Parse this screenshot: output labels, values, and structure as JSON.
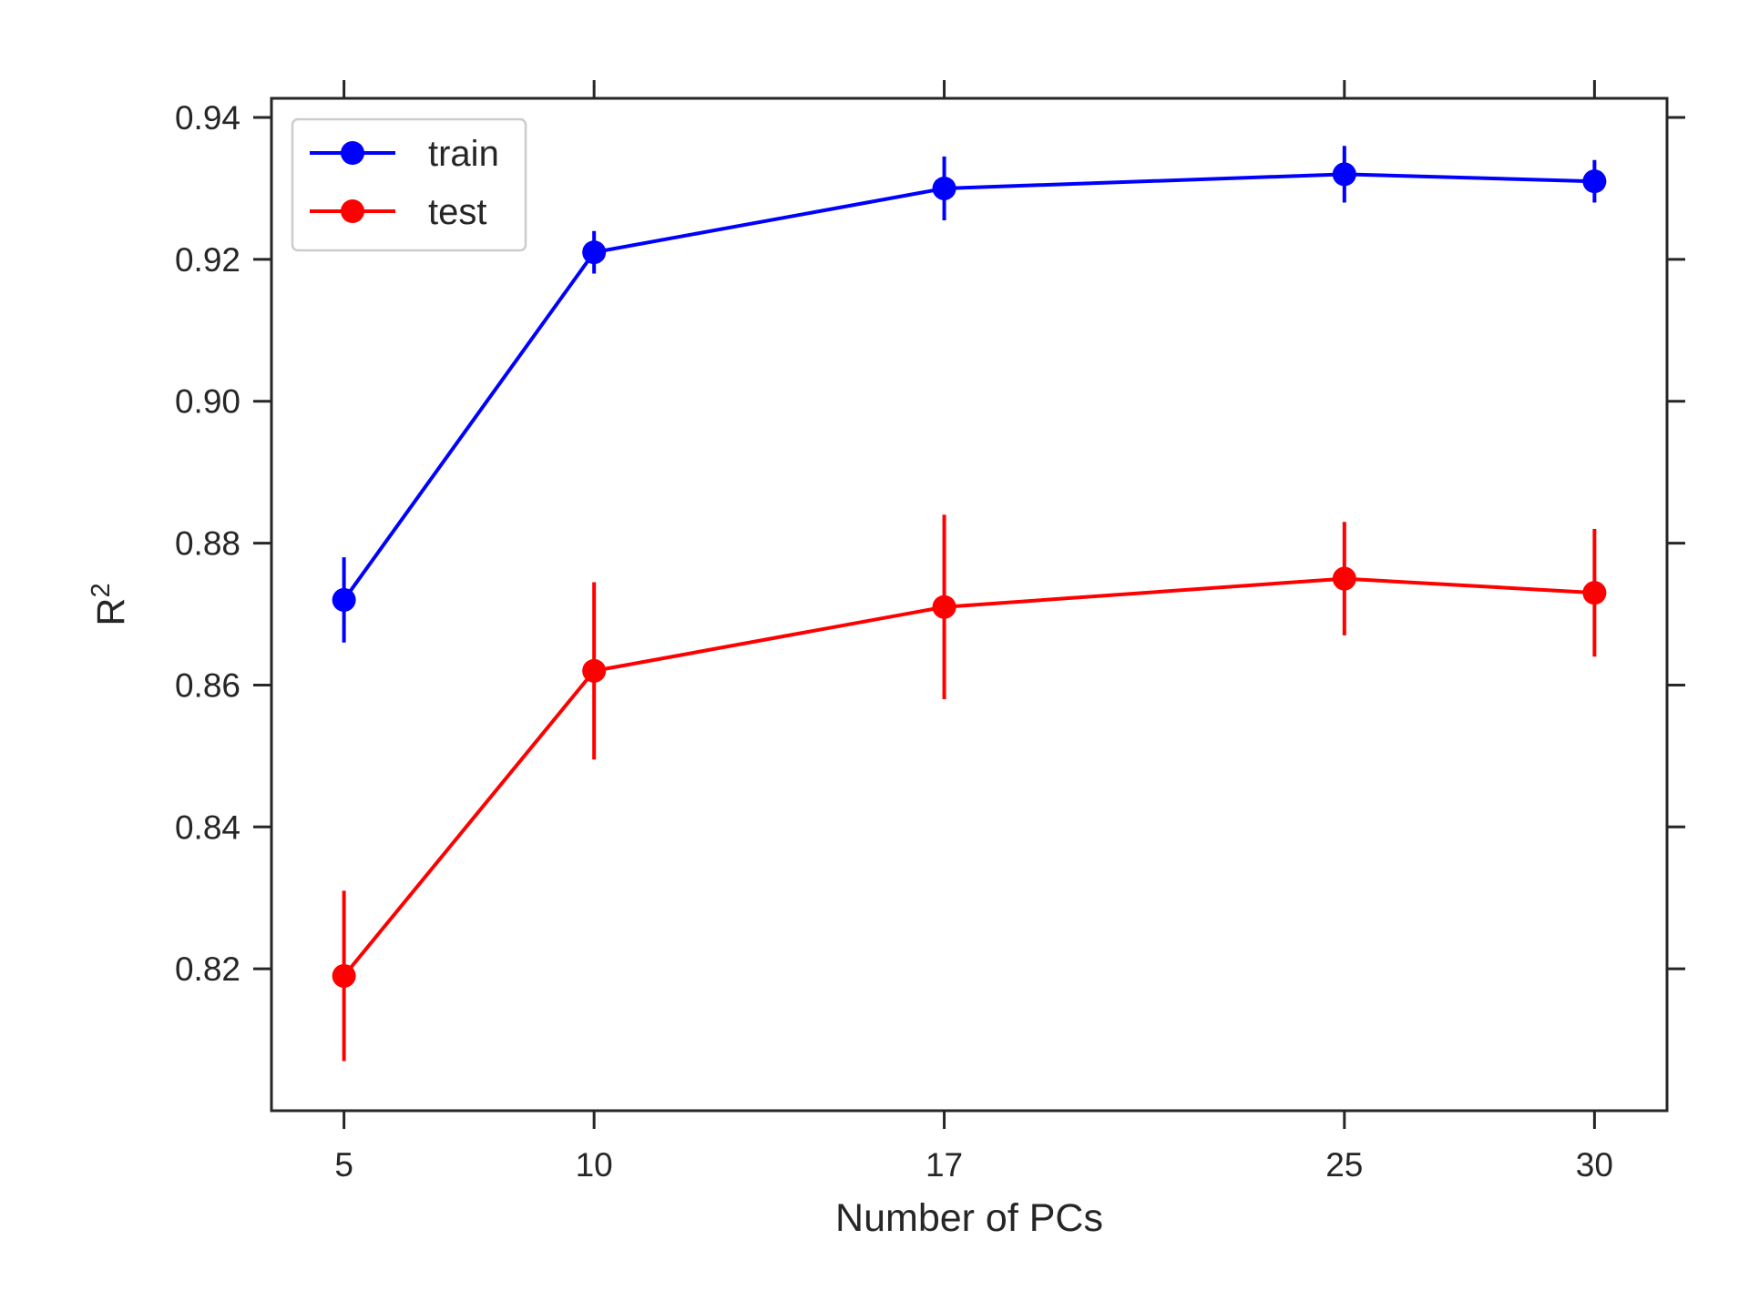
{
  "chart_data": {
    "type": "line",
    "xlabel": "Number of PCs",
    "ylabel_base": "R",
    "ylabel_sup": "2",
    "x": [
      5,
      10,
      17,
      25,
      30
    ],
    "x_tick_labels": [
      "5",
      "10",
      "17",
      "25",
      "30"
    ],
    "xlim": [
      3.55,
      31.45
    ],
    "ylim": [
      0.8,
      0.9427
    ],
    "y_ticks": [
      0.82,
      0.84,
      0.86,
      0.88,
      0.9,
      0.92,
      0.94
    ],
    "y_tick_labels": [
      "0.82",
      "0.84",
      "0.86",
      "0.88",
      "0.90",
      "0.92",
      "0.94"
    ],
    "grid": false,
    "legend_position": "top-left",
    "series": [
      {
        "name": "train",
        "color": "#0000ff",
        "values": [
          0.872,
          0.921,
          0.93,
          0.932,
          0.931
        ],
        "errors": [
          0.006,
          0.003,
          0.0045,
          0.004,
          0.003
        ]
      },
      {
        "name": "test",
        "color": "#ff0000",
        "values": [
          0.819,
          0.862,
          0.871,
          0.875,
          0.873
        ],
        "errors": [
          0.012,
          0.0125,
          0.013,
          0.008,
          0.009
        ]
      }
    ]
  }
}
